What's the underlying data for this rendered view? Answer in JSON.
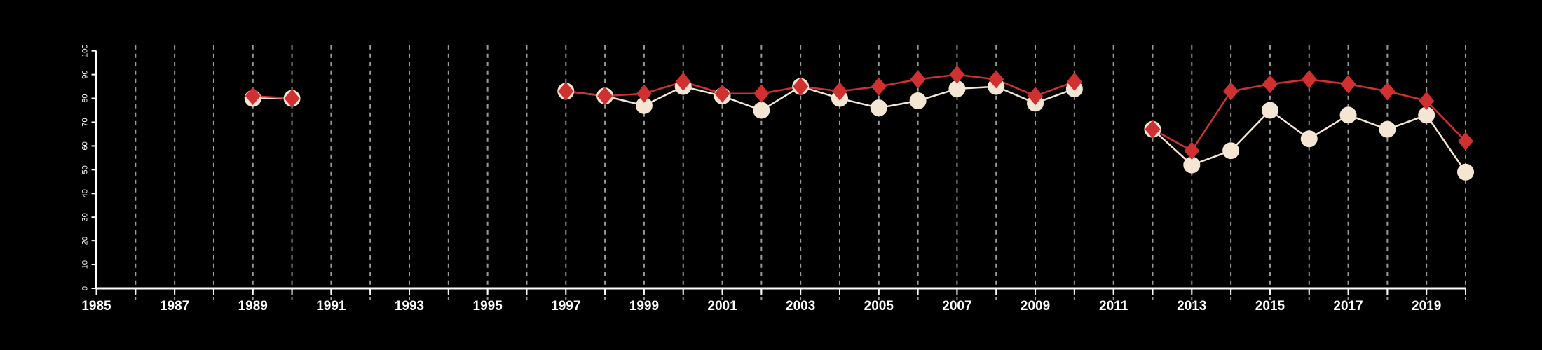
{
  "chart_data": {
    "type": "line",
    "title": "",
    "xlabel": "",
    "ylabel": "",
    "xlim": [
      1985,
      2020
    ],
    "ylim": [
      0,
      100
    ],
    "x_tick_labels": [
      "1985",
      "1987",
      "1989",
      "1991",
      "1993",
      "1995",
      "1997",
      "1999",
      "2001",
      "2003",
      "2005",
      "2007",
      "2009",
      "2011",
      "2013",
      "2015",
      "2017",
      "2019"
    ],
    "y_tick_labels": [
      "0",
      "10",
      "20",
      "30",
      "40",
      "50",
      "60",
      "70",
      "80",
      "90",
      "100"
    ],
    "grid": "vertical dashed lines at each year",
    "x": [
      1989,
      1990,
      1997,
      1998,
      1999,
      2000,
      2001,
      2002,
      2003,
      2004,
      2005,
      2006,
      2007,
      2008,
      2009,
      2010,
      2012,
      2013,
      2014,
      2015,
      2016,
      2017,
      2018,
      2019,
      2020
    ],
    "segments": [
      [
        1989,
        1990
      ],
      [
        1997,
        2010
      ],
      [
        2012,
        2020
      ]
    ],
    "series": [
      {
        "name": "circles",
        "color": "#f5e6d3",
        "marker": "circle",
        "values": [
          80,
          80,
          83,
          81,
          77,
          85,
          81,
          75,
          85,
          80,
          76,
          79,
          84,
          85,
          78,
          84,
          67,
          52,
          58,
          75,
          63,
          73,
          67,
          73,
          49
        ]
      },
      {
        "name": "diamonds",
        "color": "#d03030",
        "marker": "diamond",
        "values": [
          81,
          80,
          83,
          81,
          82,
          87,
          82,
          82,
          85,
          83,
          85,
          88,
          90,
          88,
          81,
          87,
          67,
          58,
          83,
          86,
          88,
          86,
          83,
          79,
          62
        ]
      }
    ]
  }
}
